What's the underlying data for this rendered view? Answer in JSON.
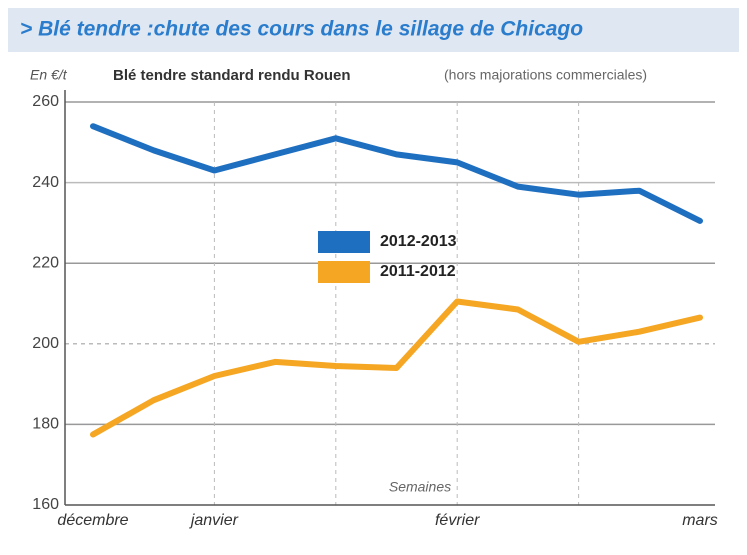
{
  "chart_data": {
    "type": "line",
    "title": "> Blé tendre :chute des cours dans le sillage de Chicago",
    "subtitle": "Blé tendre standard rendu Rouen",
    "subtitle_note": "(hors majorations commerciales)",
    "y_label": "En €/t",
    "x_label": "Semaines",
    "categories": [
      "décembre",
      null,
      "janvier",
      null,
      null,
      null,
      "février",
      null,
      null,
      null,
      "mars"
    ],
    "series": [
      {
        "name": "2012-2013",
        "color": "#1f6fc1",
        "values": [
          254,
          248,
          243,
          247,
          251,
          247,
          245,
          239,
          237,
          238,
          230.5
        ]
      },
      {
        "name": "2011-2012",
        "color": "#f5a623",
        "values": [
          177.5,
          186,
          192,
          195.5,
          194.5,
          194,
          210.5,
          208.5,
          200.5,
          203,
          206.5
        ]
      }
    ],
    "ylim": [
      160,
      260
    ],
    "yticks": [
      160,
      180,
      200,
      220,
      240,
      260
    ],
    "grid": true
  }
}
